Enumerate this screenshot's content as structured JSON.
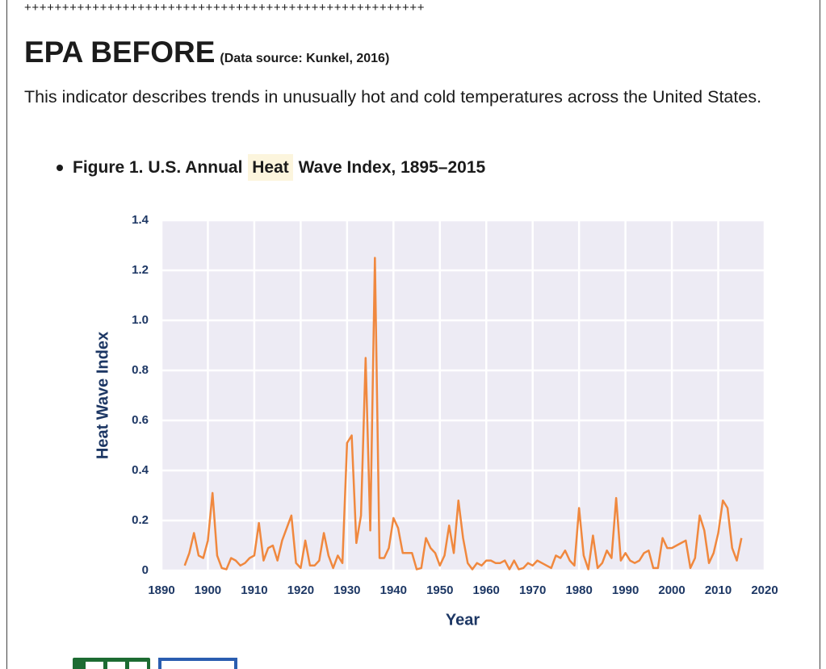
{
  "header": {
    "plus_line": "+++++++++++++++++++++++++++++++++++++++++++++++++++++",
    "title": "EPA BEFORE",
    "source": "(Data source: Kunkel, 2016)"
  },
  "description": "This indicator describes trends in unusually hot and cold temperatures across the United States.",
  "figure": {
    "caption_before": "Figure 1. U.S. Annual",
    "caption_highlight": "Heat",
    "caption_after": "Wave Index, 1895–2015"
  },
  "chart_data": {
    "type": "line",
    "y_label": "Heat Wave Index",
    "x_label": "Year",
    "color": "#f0883e",
    "grid": true,
    "xlim": [
      1890,
      2020
    ],
    "ylim": [
      0,
      1.4
    ],
    "xticks": [
      1890,
      1900,
      1910,
      1920,
      1930,
      1940,
      1950,
      1960,
      1970,
      1980,
      1990,
      2000,
      2010,
      2020
    ],
    "yticks": [
      0,
      0.2,
      0.4,
      0.6,
      0.8,
      {
        "value": 1,
        "label": "1.0"
      },
      1.2,
      1.4
    ],
    "x": [
      1895,
      1896,
      1897,
      1898,
      1899,
      1900,
      1901,
      1902,
      1903,
      1904,
      1905,
      1906,
      1907,
      1908,
      1909,
      1910,
      1911,
      1912,
      1913,
      1914,
      1915,
      1916,
      1917,
      1918,
      1919,
      1920,
      1921,
      1922,
      1923,
      1924,
      1925,
      1926,
      1927,
      1928,
      1929,
      1930,
      1931,
      1932,
      1933,
      1934,
      1935,
      1936,
      1937,
      1938,
      1939,
      1940,
      1941,
      1942,
      1943,
      1944,
      1945,
      1946,
      1947,
      1948,
      1949,
      1950,
      1951,
      1952,
      1953,
      1954,
      1955,
      1956,
      1957,
      1958,
      1959,
      1960,
      1961,
      1962,
      1963,
      1964,
      1965,
      1966,
      1967,
      1968,
      1969,
      1970,
      1971,
      1972,
      1973,
      1974,
      1975,
      1976,
      1977,
      1978,
      1979,
      1980,
      1981,
      1982,
      1983,
      1984,
      1985,
      1986,
      1987,
      1988,
      1989,
      1990,
      1991,
      1992,
      1993,
      1994,
      1995,
      1996,
      1997,
      1998,
      1999,
      2000,
      2001,
      2002,
      2003,
      2004,
      2005,
      2006,
      2007,
      2008,
      2009,
      2010,
      2011,
      2012,
      2013,
      2014,
      2015
    ],
    "values": [
      0.02,
      0.07,
      0.15,
      0.06,
      0.05,
      0.12,
      0.31,
      0.06,
      0.01,
      0.005,
      0.05,
      0.04,
      0.02,
      0.03,
      0.05,
      0.06,
      0.19,
      0.04,
      0.09,
      0.1,
      0.04,
      0.12,
      0.17,
      0.22,
      0.03,
      0.01,
      0.12,
      0.02,
      0.02,
      0.04,
      0.15,
      0.06,
      0.01,
      0.06,
      0.03,
      0.51,
      0.54,
      0.11,
      0.22,
      0.85,
      0.16,
      1.25,
      0.05,
      0.05,
      0.09,
      0.21,
      0.17,
      0.07,
      0.07,
      0.07,
      0.005,
      0.01,
      0.13,
      0.09,
      0.07,
      0.02,
      0.06,
      0.18,
      0.07,
      0.28,
      0.13,
      0.03,
      0.005,
      0.03,
      0.02,
      0.04,
      0.04,
      0.03,
      0.03,
      0.04,
      0.005,
      0.04,
      0.005,
      0.01,
      0.03,
      0.02,
      0.04,
      0.03,
      0.02,
      0.01,
      0.06,
      0.05,
      0.08,
      0.04,
      0.02,
      0.25,
      0.06,
      0.005,
      0.14,
      0.01,
      0.03,
      0.08,
      0.05,
      0.29,
      0.04,
      0.07,
      0.04,
      0.03,
      0.04,
      0.07,
      0.08,
      0.01,
      0.01,
      0.13,
      0.09,
      0.09,
      0.1,
      0.11,
      0.12,
      0.01,
      0.05,
      0.22,
      0.16,
      0.03,
      0.07,
      0.15,
      0.28,
      0.25,
      0.09,
      0.04,
      0.13
    ]
  }
}
